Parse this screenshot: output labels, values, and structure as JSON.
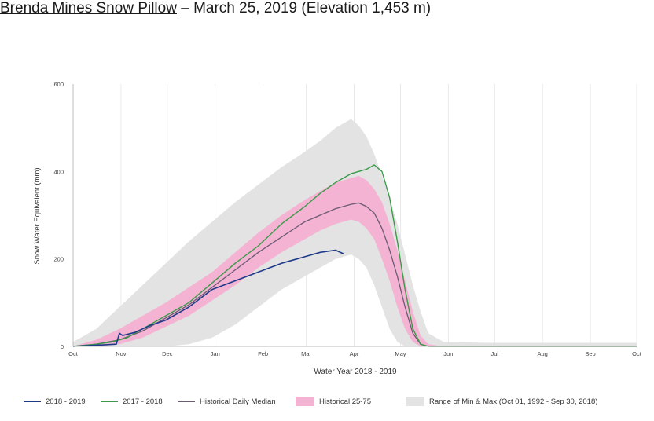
{
  "header": {
    "station": "Brenda Mines Snow Pillow",
    "rest": " – March 25, 2019 (Elevation 1,453 m)"
  },
  "chart_data": {
    "type": "line",
    "title": "",
    "xlabel": "Water Year 2018 - 2019",
    "ylabel": "Snow Water Equivalent (mm)",
    "ylim": [
      0,
      600
    ],
    "yticks": [
      0,
      200,
      400,
      600
    ],
    "xlim": [
      0,
      365
    ],
    "x_tick_days": [
      0,
      31,
      61,
      92,
      123,
      151,
      182,
      212,
      243,
      273,
      304,
      335,
      365
    ],
    "x_tick_labels": [
      "Oct",
      "Nov",
      "Dec",
      "Jan",
      "Feb",
      "Mar",
      "Apr",
      "May",
      "Jun",
      "Jul",
      "Aug",
      "Sep",
      "Oct"
    ],
    "grid": "vertical",
    "legend_position": "bottom",
    "colors": {
      "y2018_2019": "#1f3a8a",
      "y2017_2018": "#3a9a4a",
      "median": "#6b5b73",
      "p25_75": "#f4b3d3",
      "minmax": "#e3e3e3"
    },
    "series": [
      {
        "name": "2018 - 2019",
        "x": [
          0,
          28,
          30,
          32,
          40,
          50,
          60,
          75,
          90,
          105,
          120,
          135,
          150,
          160,
          170,
          175
        ],
        "values": [
          0,
          5,
          30,
          25,
          32,
          48,
          60,
          90,
          130,
          150,
          170,
          190,
          205,
          215,
          220,
          212
        ]
      },
      {
        "name": "2017 - 2018",
        "x": [
          0,
          15,
          25,
          35,
          45,
          60,
          75,
          90,
          105,
          120,
          135,
          150,
          160,
          170,
          180,
          185,
          190,
          195,
          200,
          205,
          210,
          215,
          220,
          225,
          230,
          240,
          270,
          300,
          330,
          365
        ],
        "values": [
          0,
          5,
          10,
          20,
          40,
          70,
          100,
          145,
          190,
          230,
          280,
          320,
          350,
          375,
          395,
          400,
          405,
          415,
          400,
          340,
          240,
          130,
          40,
          5,
          0,
          0,
          0,
          0,
          0,
          0
        ]
      },
      {
        "name": "Historical Daily Median",
        "x": [
          0,
          15,
          30,
          45,
          60,
          75,
          90,
          105,
          120,
          135,
          150,
          160,
          170,
          180,
          185,
          190,
          195,
          200,
          205,
          210,
          215,
          220,
          225,
          230,
          240,
          270,
          300,
          330,
          365
        ],
        "values": [
          0,
          5,
          15,
          35,
          65,
          95,
          135,
          175,
          215,
          250,
          285,
          300,
          315,
          325,
          328,
          320,
          305,
          270,
          220,
          160,
          90,
          30,
          5,
          0,
          0,
          0,
          0,
          0,
          0
        ]
      },
      {
        "name": "Historical 25-75",
        "x": [
          0,
          15,
          30,
          45,
          60,
          75,
          90,
          105,
          120,
          135,
          150,
          160,
          170,
          180,
          185,
          190,
          195,
          200,
          205,
          210,
          215,
          220,
          225,
          230,
          240,
          270,
          300,
          330,
          365
        ],
        "lower": [
          0,
          0,
          5,
          20,
          45,
          70,
          105,
          140,
          180,
          215,
          245,
          265,
          280,
          290,
          285,
          270,
          245,
          200,
          150,
          90,
          40,
          10,
          0,
          0,
          0,
          0,
          0,
          0,
          0
        ],
        "upper": [
          0,
          15,
          40,
          70,
          100,
          135,
          170,
          215,
          260,
          300,
          335,
          355,
          375,
          385,
          390,
          380,
          360,
          330,
          280,
          220,
          150,
          80,
          25,
          5,
          0,
          0,
          0,
          0,
          0
        ]
      },
      {
        "name": "Range of Min & Max (Oct 01, 1992 - Sep 30, 2018)",
        "x": [
          0,
          15,
          30,
          45,
          60,
          75,
          90,
          105,
          120,
          135,
          150,
          160,
          170,
          180,
          185,
          190,
          195,
          200,
          205,
          210,
          215,
          220,
          225,
          230,
          240,
          270,
          300,
          330,
          365
        ],
        "lower": [
          0,
          0,
          0,
          0,
          0,
          5,
          20,
          50,
          90,
          130,
          160,
          180,
          200,
          210,
          200,
          180,
          140,
          90,
          40,
          10,
          0,
          0,
          0,
          0,
          0,
          0,
          0,
          0,
          0
        ],
        "upper": [
          10,
          40,
          90,
          140,
          190,
          240,
          285,
          330,
          370,
          410,
          445,
          470,
          500,
          520,
          505,
          480,
          440,
          390,
          340,
          280,
          210,
          140,
          80,
          30,
          10,
          8,
          8,
          8,
          8
        ]
      }
    ]
  }
}
